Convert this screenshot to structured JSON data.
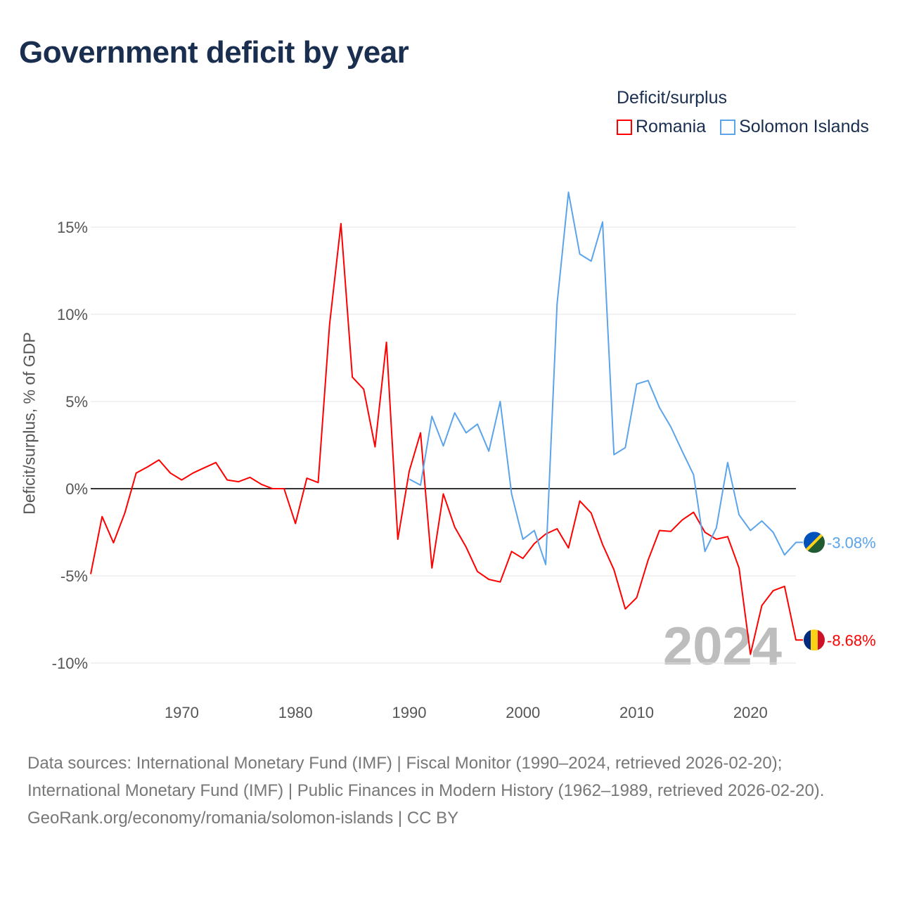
{
  "title": "Government deficit by year",
  "legend": {
    "title": "Deficit/surplus",
    "items": [
      {
        "label": "Romania",
        "color": "#ff0000"
      },
      {
        "label": "Solomon Islands",
        "color": "#5ba4ea"
      }
    ]
  },
  "chart_data": {
    "type": "line",
    "title": "Government deficit by year",
    "xlabel": "",
    "ylabel": "Deficit/surplus, % of GDP",
    "xlim": [
      1962,
      2024
    ],
    "ylim": [
      -10,
      17
    ],
    "x_ticks": [
      1970,
      1980,
      1990,
      2000,
      2010,
      2020
    ],
    "y_ticks": [
      {
        "v": 15,
        "label": "15%"
      },
      {
        "v": 10,
        "label": "10%"
      },
      {
        "v": 5,
        "label": "5%"
      },
      {
        "v": 0,
        "label": "0%"
      },
      {
        "v": -5,
        "label": "-5%"
      },
      {
        "v": -10,
        "label": "-10%"
      }
    ],
    "grid": true,
    "legend_position": "top-right",
    "year_watermark": "2024",
    "series": [
      {
        "name": "Romania",
        "color": "#ff0000",
        "end_label": "-8.68%",
        "start_year": 1962,
        "values": [
          -4.9,
          -1.6,
          -3.1,
          -1.4,
          0.9,
          1.25,
          1.65,
          0.9,
          0.5,
          0.9,
          1.2,
          1.5,
          0.5,
          0.4,
          0.65,
          0.25,
          0,
          0,
          -2.0,
          0.6,
          0.35,
          9.4,
          15.2,
          6.4,
          5.7,
          2.4,
          8.4,
          -2.9,
          1.0,
          3.2,
          -4.55,
          -0.3,
          -2.2,
          -3.35,
          -4.75,
          -5.2,
          -5.35,
          -3.6,
          -4.0,
          -3.15,
          -2.6,
          -2.3,
          -3.4,
          -0.7,
          -1.4,
          -3.2,
          -4.65,
          -6.9,
          -6.25,
          -4.1,
          -2.4,
          -2.45,
          -1.8,
          -1.35,
          -2.5,
          -2.9,
          -2.75,
          -4.55,
          -9.5,
          -6.7,
          -5.85,
          -5.6,
          -8.68
        ]
      },
      {
        "name": "Solomon Islands",
        "color": "#5ba4ea",
        "end_label": "-3.08%",
        "start_year": 1990,
        "values": [
          0.55,
          0.2,
          4.15,
          2.45,
          4.35,
          3.2,
          3.7,
          2.15,
          5.0,
          -0.3,
          -2.9,
          -2.4,
          -4.35,
          10.6,
          17.0,
          13.45,
          13.05,
          15.3,
          1.95,
          2.35,
          6.0,
          6.2,
          4.65,
          3.55,
          2.15,
          0.8,
          -3.6,
          -2.25,
          1.5,
          -1.5,
          -2.4,
          -1.85,
          -2.5,
          -3.8,
          -3.08
        ]
      }
    ]
  },
  "footer": {
    "sources": "Data sources: International Monetary Fund (IMF) | Fiscal Monitor (1990–2024, retrieved 2026-02-20); International Monetary Fund (IMF) | Public Finances in Modern History (1962–1989, retrieved 2026-02-20).",
    "link": "GeoRank.org/economy/romania/solomon-islands | CC BY"
  }
}
